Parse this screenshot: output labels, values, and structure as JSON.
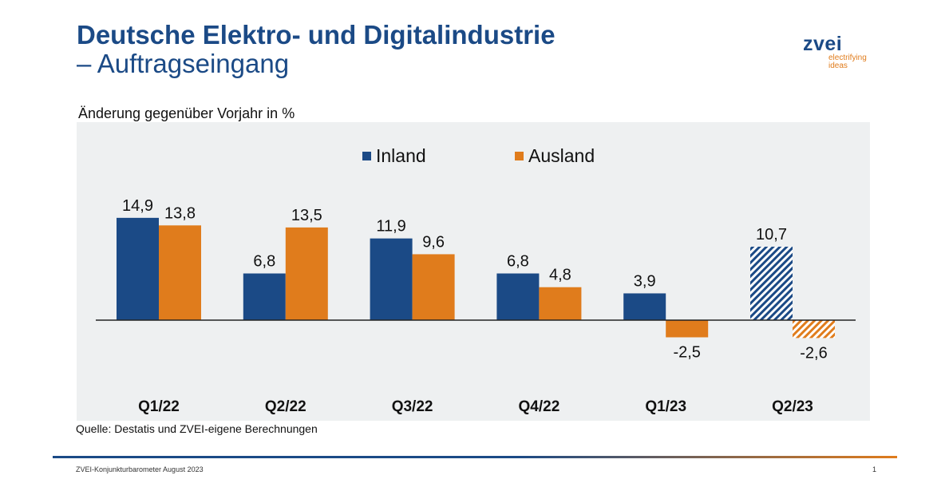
{
  "header": {
    "title_line1": "Deutsche Elektro- und Digitalindustrie",
    "title_line2": "– Auftragseingang"
  },
  "logo": {
    "word": "zvei",
    "tagline1": "electrifying",
    "tagline2": "ideas"
  },
  "colors": {
    "brand_blue": "#1b4a86",
    "brand_orange": "#e07c1c",
    "plot_bg": "#eef0f1"
  },
  "chart_data": {
    "type": "bar",
    "title": "",
    "subtitle": "Änderung gegenüber Vorjahr in %",
    "categories": [
      "Q1/22",
      "Q2/22",
      "Q3/22",
      "Q4/22",
      "Q1/23",
      "Q2/23"
    ],
    "series": [
      {
        "name": "Inland",
        "color": "#1b4a86",
        "values": [
          14.9,
          6.8,
          11.9,
          6.8,
          3.9,
          10.7
        ],
        "labels": [
          "14,9",
          "6,8",
          "11,9",
          "6,8",
          "3,9",
          "10,7"
        ]
      },
      {
        "name": "Ausland",
        "color": "#e07c1c",
        "values": [
          13.8,
          13.5,
          9.6,
          4.8,
          -2.5,
          -2.6
        ],
        "labels": [
          "13,8",
          "13,5",
          "9,6",
          "4,8",
          "-2,5",
          "-2,6"
        ]
      }
    ],
    "hatched_categories": [
      "Q2/23"
    ],
    "legend_position": "top-center",
    "grid": false,
    "ylim": [
      -2.6,
      14.9
    ]
  },
  "source": "Quelle: Destatis und ZVEI-eigene Berechnungen",
  "footer": {
    "text": "ZVEI-Konjunkturbarometer August 2023",
    "page": "1"
  }
}
